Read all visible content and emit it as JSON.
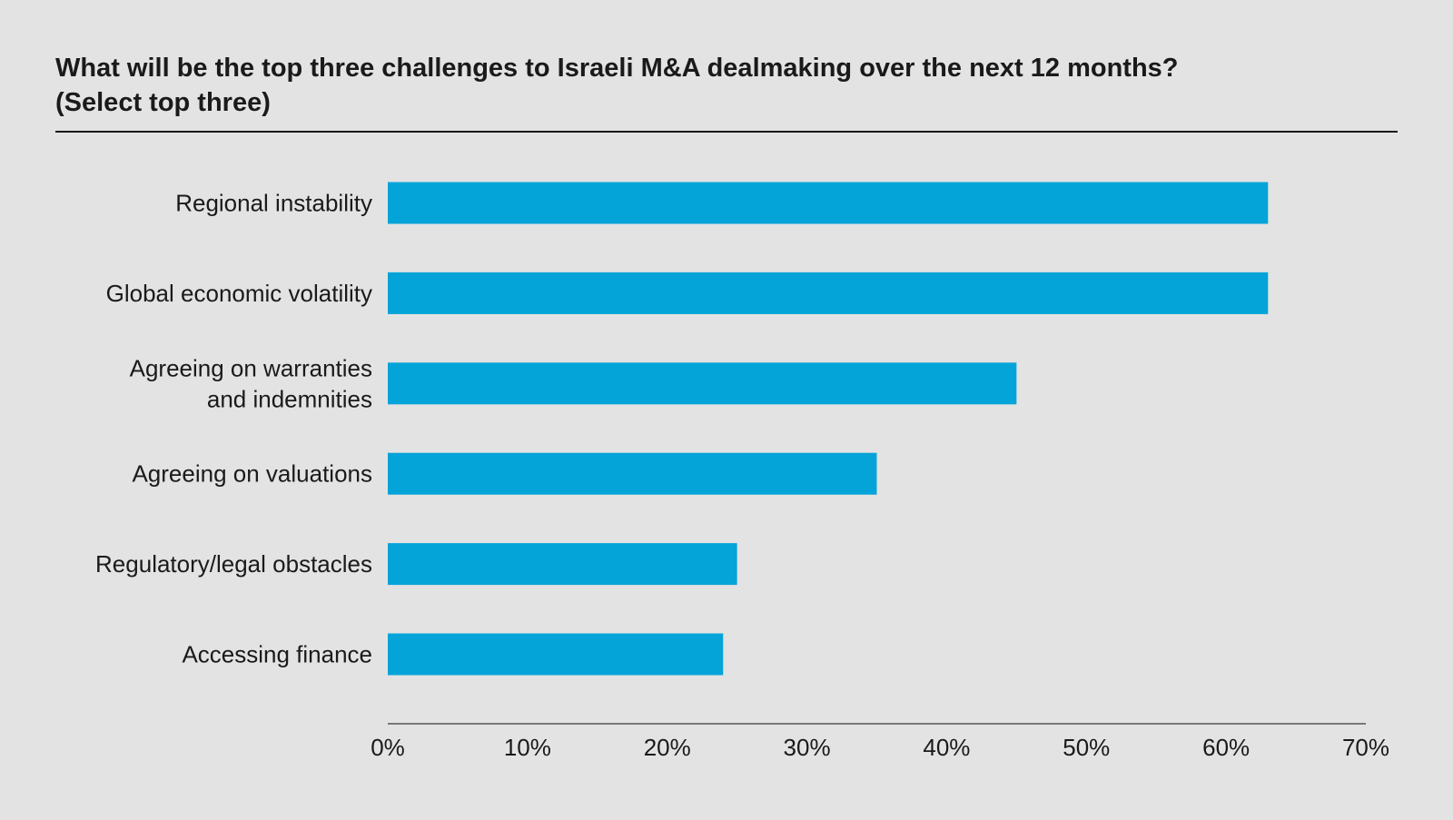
{
  "chart_data": {
    "type": "bar",
    "orientation": "horizontal",
    "title": "What will be the top three challenges to Israeli M&A dealmaking over the next 12 months? (Select top three)",
    "title_lines": [
      "What will be the top three challenges to Israeli M&A dealmaking over the next 12 months?",
      "(Select top three)"
    ],
    "categories": [
      [
        "Regional instability"
      ],
      [
        "Global economic volatility"
      ],
      [
        "Agreeing on warranties",
        "and indemnities"
      ],
      [
        "Agreeing on valuations"
      ],
      [
        "Regulatory/legal obstacles"
      ],
      [
        "Accessing finance"
      ]
    ],
    "values": [
      63,
      63,
      45,
      35,
      25,
      24
    ],
    "xlim": [
      0,
      70
    ],
    "xticks": [
      "0%",
      "10%",
      "20%",
      "30%",
      "40%",
      "50%",
      "60%",
      "70%"
    ],
    "xlabel": "",
    "ylabel": "",
    "grid": false,
    "bar_color": "#05a4d8"
  }
}
